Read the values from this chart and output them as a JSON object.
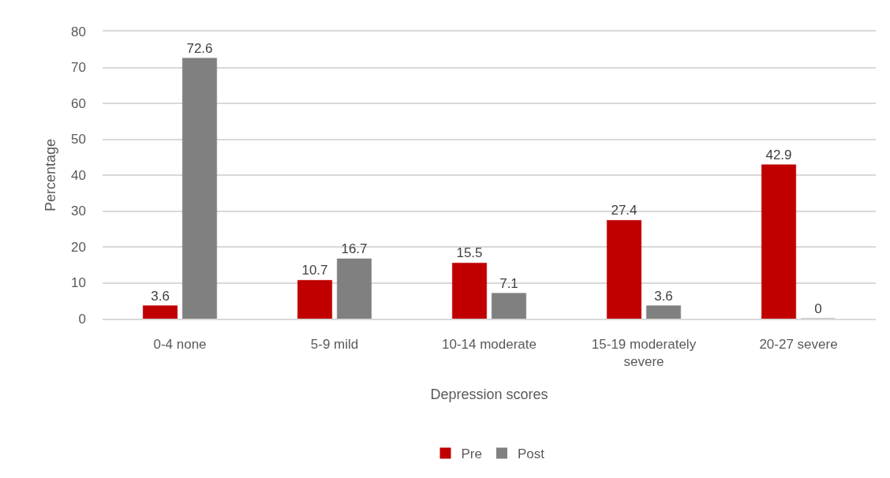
{
  "chart_data": {
    "type": "bar",
    "xlabel": "Depression scores",
    "ylabel": "Percentage",
    "categories": [
      "0-4 none",
      "5-9 mild",
      "10-14 moderate",
      "15-19 moderately severe",
      "20-27 severe"
    ],
    "series": [
      {
        "name": "Pre",
        "color": "#c00000",
        "values": [
          3.6,
          10.7,
          15.5,
          27.4,
          42.9
        ]
      },
      {
        "name": "Post",
        "color": "#808080",
        "values": [
          72.6,
          16.7,
          7.1,
          3.6,
          0
        ]
      }
    ],
    "ylim": [
      0,
      80
    ],
    "yticks": [
      0,
      10,
      20,
      30,
      40,
      50,
      60,
      70,
      80
    ],
    "grid": "y",
    "legend": "bottom",
    "data_labels": true
  }
}
